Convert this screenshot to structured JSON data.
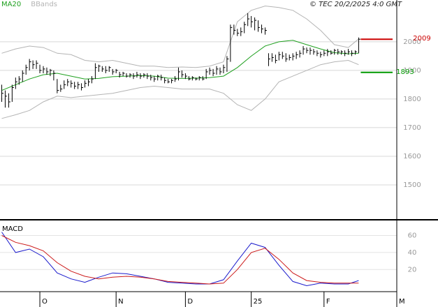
{
  "chart_data": {
    "type": "stock",
    "source": "© TEC 20/2/2025 4:0 GMT",
    "xlim": [
      -0.5,
      114
    ],
    "xticks": [
      {
        "value": 11,
        "label": "O"
      },
      {
        "value": 33,
        "label": "N"
      },
      {
        "value": 53,
        "label": "D"
      },
      {
        "value": 72,
        "label": "25"
      },
      {
        "value": 93,
        "label": "F"
      },
      {
        "value": 114,
        "label": "M"
      }
    ],
    "ylim": [
      1378,
      2146
    ],
    "yticks": [
      1500,
      1600,
      1700,
      1800,
      1900,
      2000
    ],
    "grid": true,
    "bar_color": "#000000",
    "high": [
      1850,
      1830,
      1820,
      1850,
      1875,
      1880,
      1900,
      1920,
      1940,
      1935,
      1935,
      1920,
      1915,
      1910,
      1905,
      1900,
      1870,
      1850,
      1865,
      1870,
      1865,
      1860,
      1860,
      1855,
      1865,
      1870,
      1880,
      1925,
      1920,
      1915,
      1915,
      1915,
      1905,
      1905,
      1895,
      1895,
      1890,
      1890,
      1890,
      1895,
      1890,
      1890,
      1890,
      1885,
      1880,
      1885,
      1885,
      1875,
      1870,
      1870,
      1880,
      1910,
      1900,
      1890,
      1880,
      1880,
      1875,
      1880,
      1880,
      1905,
      1910,
      1905,
      1915,
      1910,
      1920,
      1950,
      2060,
      2060,
      2045,
      2050,
      2070,
      2100,
      2090,
      2085,
      2075,
      2060,
      2050,
      1960,
      1960,
      1955,
      1965,
      1965,
      1960,
      1955,
      1960,
      1965,
      1970,
      1985,
      1980,
      1980,
      1975,
      1970,
      1965,
      1970,
      1975,
      1970,
      1975,
      1975,
      1970,
      1970,
      1975,
      1970,
      1970,
      2015
    ],
    "low": [
      1790,
      1770,
      1770,
      1790,
      1835,
      1850,
      1860,
      1885,
      1900,
      1905,
      1905,
      1890,
      1890,
      1885,
      1880,
      1865,
      1820,
      1825,
      1835,
      1845,
      1840,
      1835,
      1835,
      1830,
      1840,
      1845,
      1855,
      1870,
      1895,
      1895,
      1890,
      1895,
      1885,
      1890,
      1875,
      1880,
      1875,
      1875,
      1870,
      1875,
      1870,
      1875,
      1870,
      1865,
      1860,
      1865,
      1865,
      1855,
      1855,
      1855,
      1860,
      1865,
      1875,
      1870,
      1865,
      1865,
      1865,
      1865,
      1865,
      1870,
      1885,
      1880,
      1885,
      1885,
      1890,
      1895,
      1930,
      2025,
      2020,
      2020,
      2030,
      2055,
      2050,
      2040,
      2035,
      2030,
      2025,
      1915,
      1930,
      1925,
      1935,
      1940,
      1930,
      1935,
      1935,
      1940,
      1945,
      1955,
      1960,
      1955,
      1955,
      1950,
      1945,
      1950,
      1950,
      1955,
      1955,
      1955,
      1955,
      1950,
      1955,
      1950,
      1955,
      1960
    ],
    "close": [
      1820,
      1810,
      1790,
      1840,
      1860,
      1870,
      1890,
      1910,
      1930,
      1920,
      1925,
      1900,
      1905,
      1895,
      1900,
      1890,
      1830,
      1835,
      1850,
      1860,
      1855,
      1845,
      1850,
      1840,
      1855,
      1860,
      1870,
      1910,
      1915,
      1905,
      1900,
      1910,
      1895,
      1900,
      1885,
      1890,
      1880,
      1885,
      1880,
      1885,
      1880,
      1885,
      1880,
      1875,
      1870,
      1880,
      1875,
      1865,
      1860,
      1865,
      1870,
      1895,
      1885,
      1880,
      1870,
      1875,
      1870,
      1875,
      1870,
      1895,
      1900,
      1890,
      1905,
      1895,
      1910,
      1940,
      2050,
      2040,
      2030,
      2035,
      2060,
      2080,
      2070,
      2075,
      2050,
      2045,
      2040,
      1940,
      1945,
      1935,
      1955,
      1950,
      1940,
      1945,
      1950,
      1955,
      1960,
      1975,
      1970,
      1970,
      1965,
      1960,
      1955,
      1960,
      1965,
      1960,
      1970,
      1965,
      1965,
      1960,
      1965,
      1960,
      1965,
      2009
    ],
    "line_x": [
      0,
      4,
      8,
      12,
      16,
      20,
      24,
      28,
      32,
      36,
      40,
      44,
      48,
      52,
      56,
      60,
      64,
      68,
      72,
      76,
      80,
      84,
      88,
      92,
      96,
      100,
      103
    ],
    "overlays": [
      {
        "name": "MA20",
        "color": "#1fa01f",
        "values": [
          1830,
          1850,
          1870,
          1885,
          1890,
          1880,
          1870,
          1872,
          1878,
          1880,
          1882,
          1880,
          1873,
          1872,
          1873,
          1875,
          1880,
          1910,
          1950,
          1985,
          2000,
          2005,
          1990,
          1975,
          1962,
          1958,
          1960
        ]
      },
      {
        "name": "BBands",
        "color": "#b4b4b4",
        "upper": [
          1960,
          1975,
          1985,
          1980,
          1960,
          1955,
          1935,
          1930,
          1935,
          1925,
          1915,
          1915,
          1910,
          1912,
          1910,
          1915,
          1930,
          2070,
          2110,
          2125,
          2120,
          2110,
          2080,
          2040,
          1990,
          1980,
          2010
        ],
        "lower": [
          1732,
          1745,
          1760,
          1790,
          1810,
          1805,
          1810,
          1815,
          1820,
          1830,
          1840,
          1845,
          1840,
          1835,
          1835,
          1835,
          1820,
          1780,
          1760,
          1800,
          1860,
          1880,
          1900,
          1920,
          1930,
          1935,
          1920
        ]
      }
    ],
    "levels": [
      {
        "value": 2009,
        "color": "#cc0000"
      },
      {
        "value": 1893,
        "color": "#009900"
      }
    ],
    "macd": {
      "title": "MACD",
      "ylim": [
        -6,
        76
      ],
      "yticks": [
        20,
        40,
        60
      ],
      "series": [
        {
          "color": "#1a1acc",
          "values": [
            64,
            40,
            44,
            35,
            16,
            9,
            5,
            11,
            16,
            15,
            12,
            9,
            5,
            4,
            3,
            3,
            8,
            30,
            51,
            46,
            25,
            6,
            1,
            4,
            3,
            3,
            7
          ]
        },
        {
          "color": "#cc1a1a",
          "values": [
            60,
            52,
            48,
            42,
            28,
            18,
            12,
            9,
            11,
            12,
            11,
            9,
            6,
            5,
            4,
            3,
            4,
            20,
            40,
            45,
            32,
            16,
            7,
            5,
            4,
            4,
            4
          ]
        }
      ]
    }
  }
}
